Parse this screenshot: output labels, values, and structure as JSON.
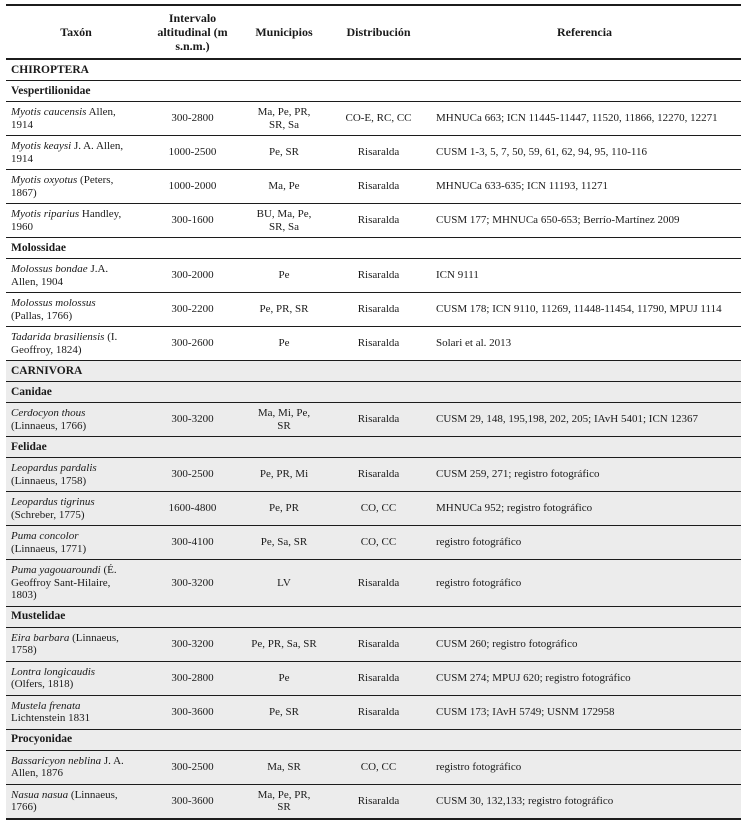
{
  "colors": {
    "text": "#1a1a1a",
    "line": "#1c1c1c",
    "shaded_bg": "#ececec",
    "page_bg": "#ffffff"
  },
  "table": {
    "columns": [
      {
        "key": "taxon",
        "label": "Taxón"
      },
      {
        "key": "interval",
        "label": "Intervalo altitudinal (m s.n.m.)"
      },
      {
        "key": "municipios",
        "label": "Municipios"
      },
      {
        "key": "distribucion",
        "label": "Distribución"
      },
      {
        "key": "referencia",
        "label": "Referencia"
      }
    ],
    "rows": [
      {
        "type": "order",
        "label": "CHIROPTERA",
        "shaded": false
      },
      {
        "type": "family",
        "label": "Vespertilionidae",
        "shaded": false
      },
      {
        "type": "species",
        "shaded": false,
        "taxon_italic": "Myotis caucensis",
        "taxon_roman": " Allen, 1914",
        "interval": "300-2800",
        "municipios": "Ma, Pe, PR, SR, Sa",
        "distribucion": "CO-E, RC, CC",
        "referencia": "MHNUCa 663; ICN 11445-11447, 11520, 11866, 12270, 12271"
      },
      {
        "type": "species",
        "shaded": false,
        "taxon_italic": "Myotis keaysi",
        "taxon_roman": " J. A. Allen, 1914",
        "interval": "1000-2500",
        "municipios": "Pe, SR",
        "distribucion": "Risaralda",
        "referencia": "CUSM 1-3, 5, 7, 50, 59, 61, 62, 94, 95, 110-116"
      },
      {
        "type": "species",
        "shaded": false,
        "taxon_italic": "Myotis oxyotus",
        "taxon_roman": " (Peters, 1867)",
        "interval": "1000-2000",
        "municipios": "Ma, Pe",
        "distribucion": "Risaralda",
        "referencia": "MHNUCa 633-635; ICN 11193, 11271"
      },
      {
        "type": "species",
        "shaded": false,
        "taxon_italic": "Myotis riparius",
        "taxon_roman": " Handley, 1960",
        "interval": "300-1600",
        "municipios": "BU, Ma, Pe, SR, Sa",
        "distribucion": "Risaralda",
        "referencia": "CUSM 177; MHNUCa 650-653;  Berrío-Martínez 2009"
      },
      {
        "type": "family",
        "label": "Molossidae",
        "shaded": false
      },
      {
        "type": "species",
        "shaded": false,
        "taxon_italic": "Molossus bondae",
        "taxon_roman": " J.A. Allen, 1904",
        "interval": "300-2000",
        "municipios": "Pe",
        "distribucion": "Risaralda",
        "referencia": "ICN 9111"
      },
      {
        "type": "species",
        "shaded": false,
        "taxon_italic": "Molossus molossus",
        "taxon_roman": " (Pallas, 1766)",
        "interval": "300-2200",
        "municipios": "Pe, PR, SR",
        "distribucion": "Risaralda",
        "referencia": "CUSM 178; ICN 9110, 11269, 11448-11454, 11790, MPUJ 1114"
      },
      {
        "type": "species",
        "shaded": false,
        "taxon_italic": "Tadarida brasiliensis",
        "taxon_roman": " (I. Geoffroy, 1824)",
        "interval": "300-2600",
        "municipios": "Pe",
        "distribucion": "Risaralda",
        "referencia": "Solari et al. 2013"
      },
      {
        "type": "order",
        "label": "CARNIVORA",
        "shaded": true
      },
      {
        "type": "family",
        "label": "Canidae",
        "shaded": true
      },
      {
        "type": "species",
        "shaded": true,
        "taxon_italic": "Cerdocyon thous",
        "taxon_roman": " (Linnaeus, 1766)",
        "interval": "300-3200",
        "municipios": "Ma, Mi, Pe, SR",
        "distribucion": "Risaralda",
        "referencia": "CUSM 29, 148, 195,198, 202, 205; IAvH 5401; ICN 12367"
      },
      {
        "type": "family",
        "label": "Felidae",
        "shaded": true
      },
      {
        "type": "species",
        "shaded": true,
        "taxon_italic": "Leopardus pardalis",
        "taxon_roman": " (Linnaeus, 1758)",
        "interval": "300-2500",
        "municipios": "Pe, PR, Mi",
        "distribucion": "Risaralda",
        "referencia": "CUSM 259, 271; registro fotográfico"
      },
      {
        "type": "species",
        "shaded": true,
        "taxon_italic": "Leopardus tigrinus",
        "taxon_roman": " (Schreber, 1775)",
        "interval": "1600-4800",
        "municipios": "Pe, PR",
        "distribucion": "CO, CC",
        "referencia": "MHNUCa 952; registro fotográfico"
      },
      {
        "type": "species",
        "shaded": true,
        "taxon_italic": "Puma concolor",
        "taxon_roman": " (Linnaeus, 1771)",
        "interval": "300-4100",
        "municipios": "Pe, Sa, SR",
        "distribucion": "CO, CC",
        "referencia": "registro fotográfico"
      },
      {
        "type": "species",
        "shaded": true,
        "taxon_italic": "Puma yagouaroundi",
        "taxon_roman": " (É. Geoffroy Sant-Hilaire, 1803)",
        "interval": "300-3200",
        "municipios": "LV",
        "distribucion": "Risaralda",
        "referencia": "registro fotográfico"
      },
      {
        "type": "family",
        "label": "Mustelidae",
        "shaded": true
      },
      {
        "type": "species",
        "shaded": true,
        "taxon_italic": "Eira barbara",
        "taxon_roman": " (Linnaeus, 1758)",
        "interval": "300-3200",
        "municipios": "Pe, PR, Sa, SR",
        "distribucion": "Risaralda",
        "referencia": "CUSM 260; registro fotográfico"
      },
      {
        "type": "species",
        "shaded": true,
        "taxon_italic": "Lontra longicaudis",
        "taxon_roman": " (Olfers, 1818)",
        "interval": "300-2800",
        "municipios": "Pe",
        "distribucion": "Risaralda",
        "referencia": "CUSM 274; MPUJ 620; registro fotográfico"
      },
      {
        "type": "species",
        "shaded": true,
        "taxon_italic": "Mustela frenata",
        "taxon_roman": " Lichtenstein 1831",
        "interval": "300-3600",
        "municipios": "Pe, SR",
        "distribucion": "Risaralda",
        "referencia": "CUSM 173; IAvH 5749; USNM 172958"
      },
      {
        "type": "family",
        "label": "Procyonidae",
        "shaded": true
      },
      {
        "type": "species",
        "shaded": true,
        "taxon_italic": "Bassaricyon neblina",
        "taxon_roman": " J. A. Allen, 1876",
        "interval": "300-2500",
        "municipios": "Ma, SR",
        "distribucion": "CO, CC",
        "referencia": "registro fotográfico"
      },
      {
        "type": "species",
        "shaded": true,
        "taxon_italic": "Nasua nasua",
        "taxon_roman": " (Linnaeus, 1766)",
        "interval": "300-3600",
        "municipios": "Ma, Pe, PR, SR",
        "distribucion": "Risaralda",
        "referencia": "CUSM 30, 132,133; registro fotográfico"
      }
    ]
  }
}
